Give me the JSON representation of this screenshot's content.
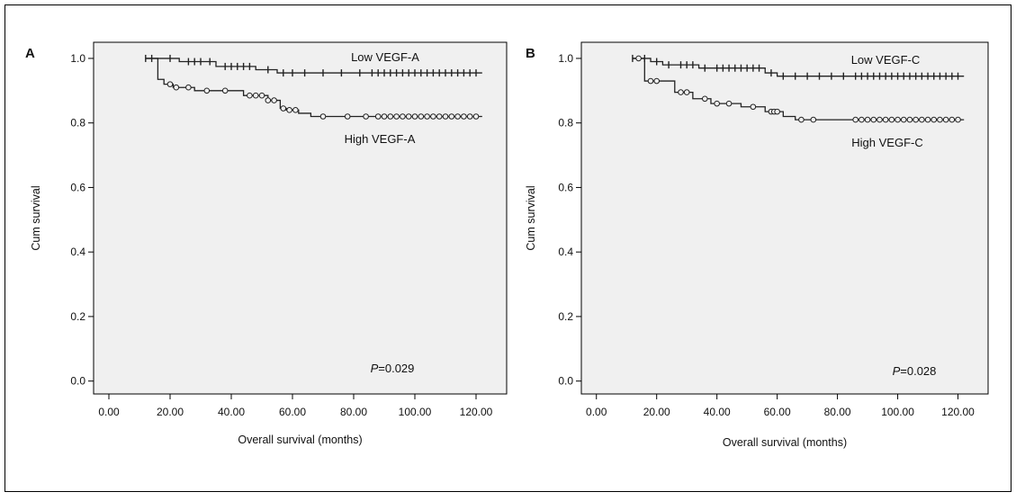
{
  "figure": {
    "colors": {
      "plot_background": "#f0f0f0",
      "frame": "#000000",
      "curve": "#222222",
      "outer_border": "#000000"
    }
  },
  "chart_data": [
    {
      "type": "line",
      "panel_label": "A",
      "xlabel": "Overall survival (months)",
      "ylabel": "Cum survival",
      "xlim": [
        -5,
        130
      ],
      "ylim": [
        -0.04,
        1.05
      ],
      "xticks": [
        0,
        20,
        40,
        60,
        80,
        100,
        120
      ],
      "xtick_labels": [
        "0.00",
        "20.00",
        "40.00",
        "60.00",
        "80.00",
        "100.00",
        "120.00"
      ],
      "yticks": [
        0.0,
        0.2,
        0.4,
        0.6,
        0.8,
        1.0
      ],
      "ytick_labels": [
        "0.0",
        "0.2",
        "0.4",
        "0.6",
        "0.8",
        "1.0"
      ],
      "grid": false,
      "annotation": {
        "prefix": "P",
        "text": "=0.029"
      },
      "series": [
        {
          "name": "Low VEGF-A",
          "censor_marker": "plus",
          "steps": [
            [
              12,
              1.0
            ],
            [
              23,
              0.99
            ],
            [
              35,
              0.975
            ],
            [
              48,
              0.965
            ],
            [
              55,
              0.955
            ],
            [
              122,
              0.955
            ]
          ],
          "censored": [
            12,
            14,
            20,
            26,
            28,
            30,
            33,
            38,
            40,
            42,
            44,
            46,
            52,
            57,
            60,
            64,
            70,
            76,
            82,
            86,
            88,
            90,
            92,
            94,
            96,
            98,
            100,
            102,
            104,
            106,
            108,
            110,
            112,
            114,
            116,
            118,
            120
          ]
        },
        {
          "name": "High VEGF-A",
          "censor_marker": "circle",
          "steps": [
            [
              12,
              1.0
            ],
            [
              16,
              0.935
            ],
            [
              18,
              0.92
            ],
            [
              21,
              0.91
            ],
            [
              28,
              0.9
            ],
            [
              44,
              0.885
            ],
            [
              52,
              0.87
            ],
            [
              56,
              0.845
            ],
            [
              58,
              0.84
            ],
            [
              62,
              0.83
            ],
            [
              66,
              0.82
            ],
            [
              122,
              0.82
            ]
          ],
          "censored": [
            20,
            22,
            26,
            32,
            38,
            46,
            48,
            50,
            52,
            54,
            57,
            59,
            61,
            70,
            78,
            84,
            88,
            90,
            92,
            94,
            96,
            98,
            100,
            102,
            104,
            106,
            108,
            110,
            112,
            114,
            116,
            118,
            120
          ]
        }
      ]
    },
    {
      "type": "line",
      "panel_label": "B",
      "xlabel": "Overall survival (months)",
      "ylabel": "Cum survival",
      "xlim": [
        -5,
        130
      ],
      "ylim": [
        -0.04,
        1.05
      ],
      "xticks": [
        0,
        20,
        40,
        60,
        80,
        100,
        120
      ],
      "xtick_labels": [
        "0.00",
        "20.00",
        "40.00",
        "60.00",
        "80.00",
        "100.00",
        "120.00"
      ],
      "yticks": [
        0.0,
        0.2,
        0.4,
        0.6,
        0.8,
        1.0
      ],
      "ytick_labels": [
        "0.0",
        "0.2",
        "0.4",
        "0.6",
        "0.8",
        "1.0"
      ],
      "grid": false,
      "annotation": {
        "prefix": "P",
        "text": "=0.028"
      },
      "series": [
        {
          "name": "Low VEGF-C",
          "censor_marker": "plus",
          "steps": [
            [
              12,
              1.0
            ],
            [
              18,
              0.99
            ],
            [
              22,
              0.98
            ],
            [
              34,
              0.97
            ],
            [
              56,
              0.955
            ],
            [
              60,
              0.945
            ],
            [
              122,
              0.945
            ]
          ],
          "censored": [
            12,
            16,
            20,
            24,
            28,
            30,
            32,
            36,
            40,
            42,
            44,
            46,
            48,
            50,
            52,
            54,
            58,
            62,
            66,
            70,
            74,
            78,
            82,
            86,
            88,
            90,
            92,
            94,
            96,
            98,
            100,
            102,
            104,
            106,
            108,
            110,
            112,
            114,
            116,
            118,
            120
          ]
        },
        {
          "name": "High VEGF-C",
          "censor_marker": "circle",
          "steps": [
            [
              12,
              1.0
            ],
            [
              16,
              0.93
            ],
            [
              26,
              0.895
            ],
            [
              32,
              0.875
            ],
            [
              38,
              0.86
            ],
            [
              48,
              0.85
            ],
            [
              56,
              0.835
            ],
            [
              62,
              0.82
            ],
            [
              66,
              0.81
            ],
            [
              122,
              0.81
            ]
          ],
          "censored": [
            14,
            18,
            20,
            28,
            30,
            36,
            40,
            44,
            52,
            58,
            59,
            60,
            68,
            72,
            86,
            88,
            90,
            92,
            94,
            96,
            98,
            100,
            102,
            104,
            106,
            108,
            110,
            112,
            114,
            116,
            118,
            120
          ]
        }
      ]
    }
  ]
}
